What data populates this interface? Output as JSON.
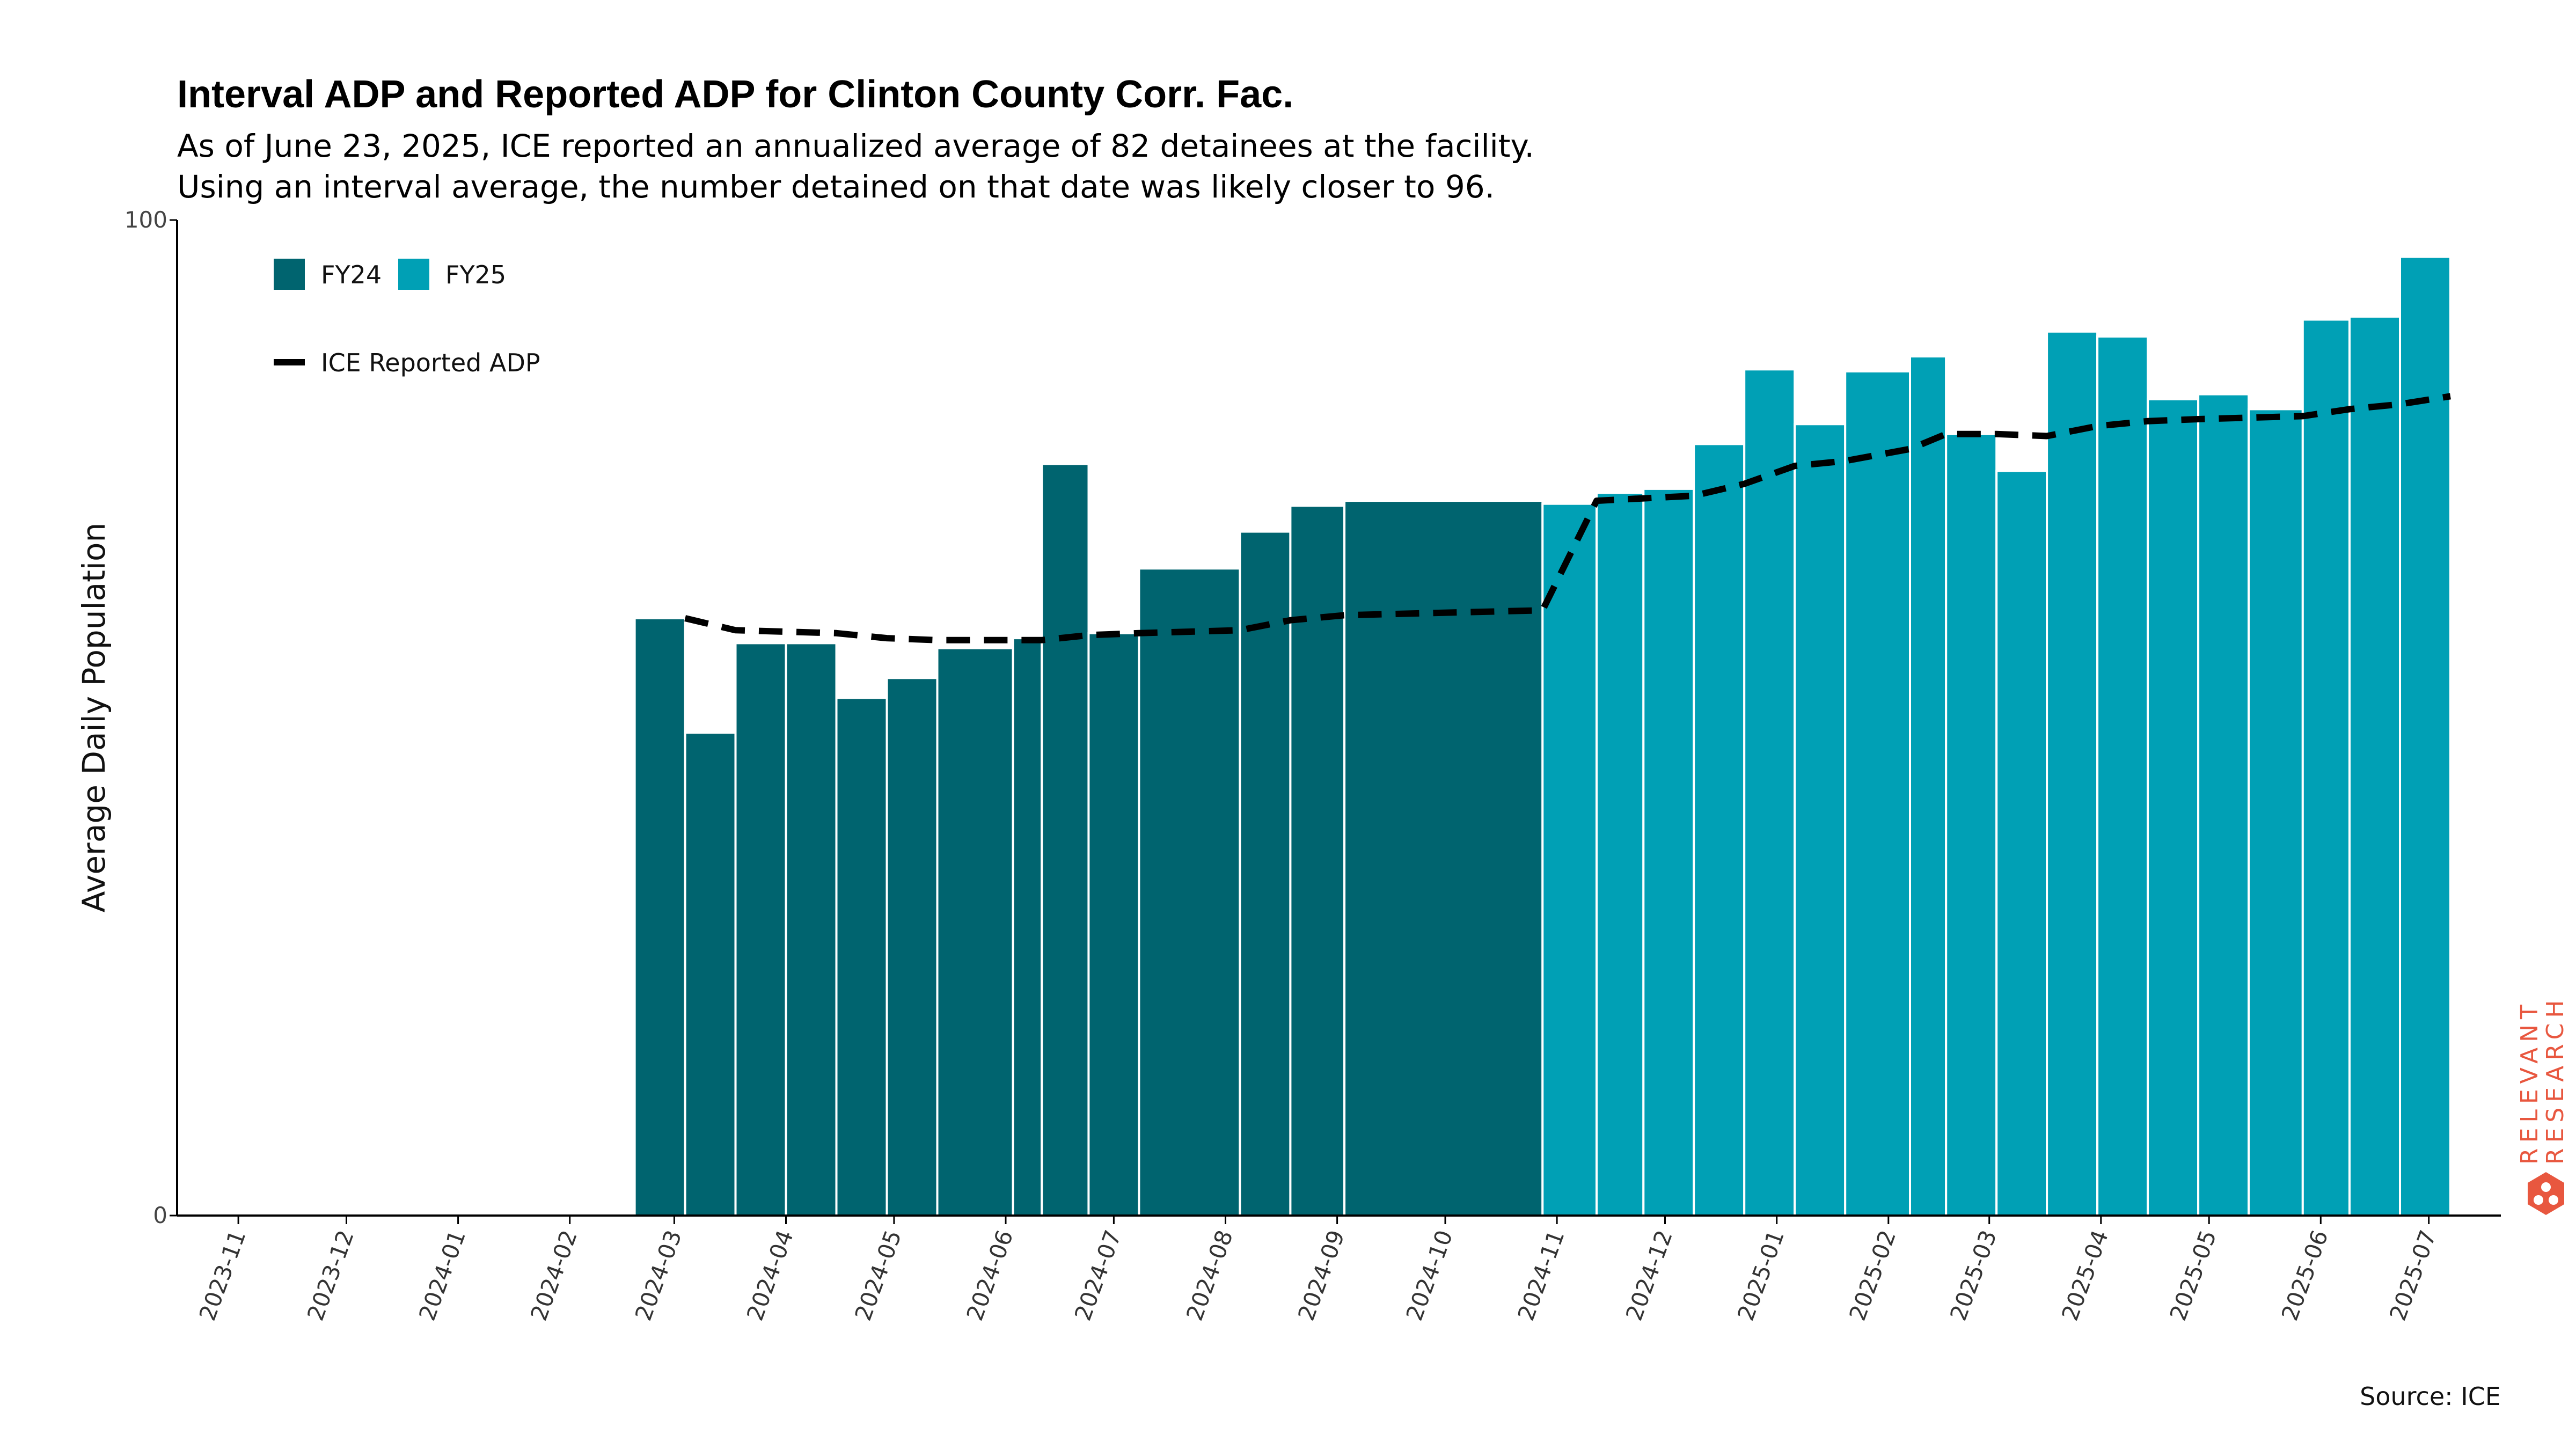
{
  "colors": {
    "fy24": "#00646f",
    "fy25": "#00a0b5",
    "line": "#000000",
    "brand": "#e8573f",
    "axis": "#000000"
  },
  "chart_data": {
    "type": "bar",
    "title": "Interval ADP and Reported ADP for Clinton County Corr. Fac.",
    "subtitle_lines": [
      "As of June 23, 2025, ICE reported an annualized average of 82 detainees at the facility.",
      "Using an interval average, the number detained on that date was likely closer to 96."
    ],
    "ylabel": "Average Daily Population",
    "ylim": [
      0,
      100
    ],
    "y_ticks": [
      0,
      100
    ],
    "x_range": [
      "2023-10-15",
      "2025-07-21"
    ],
    "x_tick_labels": [
      "2023-11",
      "2023-12",
      "2024-01",
      "2024-02",
      "2024-03",
      "2024-04",
      "2024-05",
      "2024-06",
      "2024-07",
      "2024-08",
      "2024-09",
      "2024-10",
      "2024-11",
      "2024-12",
      "2025-01",
      "2025-02",
      "2025-03",
      "2025-04",
      "2025-05",
      "2025-06",
      "2025-07"
    ],
    "legend": {
      "placement": "top-left",
      "entries": [
        "FY24",
        "FY25"
      ],
      "line_entry": "ICE Reported ADP"
    },
    "series": [
      {
        "name": "FY24",
        "bars": [
          {
            "start": "2024-02-19",
            "end": "2024-03-04",
            "value": 60
          },
          {
            "start": "2024-03-04",
            "end": "2024-03-18",
            "value": 48.5
          },
          {
            "start": "2024-03-18",
            "end": "2024-04-01",
            "value": 57.5
          },
          {
            "start": "2024-04-01",
            "end": "2024-04-15",
            "value": 57.5
          },
          {
            "start": "2024-04-15",
            "end": "2024-04-29",
            "value": 52
          },
          {
            "start": "2024-04-29",
            "end": "2024-05-13",
            "value": 54
          },
          {
            "start": "2024-05-13",
            "end": "2024-06-03",
            "value": 57
          },
          {
            "start": "2024-06-03",
            "end": "2024-06-11",
            "value": 58
          },
          {
            "start": "2024-06-11",
            "end": "2024-06-24",
            "value": 75.5
          },
          {
            "start": "2024-06-24",
            "end": "2024-07-08",
            "value": 58.5
          },
          {
            "start": "2024-07-08",
            "end": "2024-08-05",
            "value": 65
          },
          {
            "start": "2024-08-05",
            "end": "2024-08-19",
            "value": 68.7
          },
          {
            "start": "2024-08-19",
            "end": "2024-09-03",
            "value": 71.3
          },
          {
            "start": "2024-09-03",
            "end": "2024-10-28",
            "value": 71.8
          }
        ]
      },
      {
        "name": "FY25",
        "bars": [
          {
            "start": "2024-10-28",
            "end": "2024-11-12",
            "value": 71.5
          },
          {
            "start": "2024-11-12",
            "end": "2024-11-25",
            "value": 72.6
          },
          {
            "start": "2024-11-25",
            "end": "2024-12-09",
            "value": 73
          },
          {
            "start": "2024-12-09",
            "end": "2024-12-23",
            "value": 77.5
          },
          {
            "start": "2024-12-23",
            "end": "2025-01-06",
            "value": 85
          },
          {
            "start": "2025-01-06",
            "end": "2025-01-20",
            "value": 79.5
          },
          {
            "start": "2025-01-20",
            "end": "2025-02-07",
            "value": 84.8
          },
          {
            "start": "2025-02-07",
            "end": "2025-02-17",
            "value": 86.3
          },
          {
            "start": "2025-02-17",
            "end": "2025-03-03",
            "value": 78.5
          },
          {
            "start": "2025-03-03",
            "end": "2025-03-17",
            "value": 74.8
          },
          {
            "start": "2025-03-17",
            "end": "2025-03-31",
            "value": 88.8
          },
          {
            "start": "2025-03-31",
            "end": "2025-04-14",
            "value": 88.3
          },
          {
            "start": "2025-04-14",
            "end": "2025-04-28",
            "value": 82
          },
          {
            "start": "2025-04-28",
            "end": "2025-05-12",
            "value": 82.5
          },
          {
            "start": "2025-05-12",
            "end": "2025-05-27",
            "value": 81
          },
          {
            "start": "2025-05-27",
            "end": "2025-06-09",
            "value": 90
          },
          {
            "start": "2025-06-09",
            "end": "2025-06-23",
            "value": 90.3
          },
          {
            "start": "2025-06-23",
            "end": "2025-07-07",
            "value": 96.3
          }
        ]
      }
    ],
    "line_series": {
      "name": "ICE Reported ADP",
      "style": "dashed",
      "points": [
        {
          "x": "2024-03-04",
          "y": 60
        },
        {
          "x": "2024-03-18",
          "y": 58.8
        },
        {
          "x": "2024-04-15",
          "y": 58.5
        },
        {
          "x": "2024-04-29",
          "y": 58
        },
        {
          "x": "2024-05-13",
          "y": 57.8
        },
        {
          "x": "2024-06-11",
          "y": 57.8
        },
        {
          "x": "2024-06-24",
          "y": 58.3
        },
        {
          "x": "2024-07-08",
          "y": 58.5
        },
        {
          "x": "2024-08-05",
          "y": 58.8
        },
        {
          "x": "2024-08-19",
          "y": 59.8
        },
        {
          "x": "2024-09-03",
          "y": 60.3
        },
        {
          "x": "2024-10-28",
          "y": 60.8
        },
        {
          "x": "2024-11-12",
          "y": 71.8
        },
        {
          "x": "2024-12-09",
          "y": 72.3
        },
        {
          "x": "2024-12-23",
          "y": 73.5
        },
        {
          "x": "2025-01-06",
          "y": 75.3
        },
        {
          "x": "2025-01-20",
          "y": 75.8
        },
        {
          "x": "2025-02-07",
          "y": 77
        },
        {
          "x": "2025-02-17",
          "y": 78.5
        },
        {
          "x": "2025-03-03",
          "y": 78.5
        },
        {
          "x": "2025-03-17",
          "y": 78.3
        },
        {
          "x": "2025-03-31",
          "y": 79.3
        },
        {
          "x": "2025-04-14",
          "y": 79.8
        },
        {
          "x": "2025-04-28",
          "y": 80
        },
        {
          "x": "2025-05-27",
          "y": 80.3
        },
        {
          "x": "2025-06-09",
          "y": 81
        },
        {
          "x": "2025-06-23",
          "y": 81.5
        },
        {
          "x": "2025-07-07",
          "y": 82.3
        }
      ]
    }
  },
  "footer": {
    "source": "Source: ICE"
  },
  "brand": {
    "line1": "RELEVANT",
    "line2": "RESEARCH",
    "icon": "hexagon-logo-icon"
  }
}
